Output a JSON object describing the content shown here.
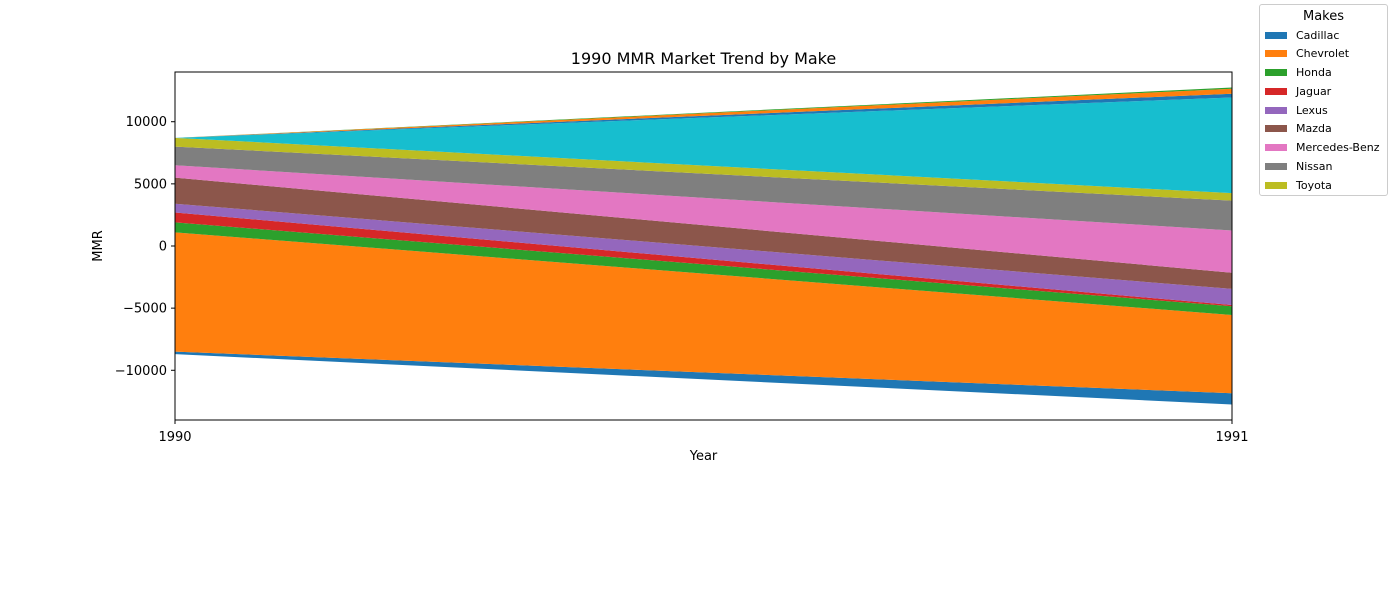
{
  "chart_data": {
    "type": "area",
    "title": "1990 MMR Market Trend by Make",
    "xlabel": "Year",
    "ylabel": "MMR",
    "x": [
      1990,
      1991
    ],
    "x_ticks": [
      "1990",
      "1991"
    ],
    "y_ticks": [
      "−10000",
      "−5000",
      "0",
      "5000",
      "10000"
    ],
    "ylim": [
      -14000,
      14000
    ],
    "grid": false,
    "baseline": "symmetric",
    "legend": {
      "title": "Makes",
      "placement": "outside top-right"
    },
    "series": [
      {
        "name": "Cadillac",
        "color": "#1f77b4",
        "values": [
          200,
          900
        ]
      },
      {
        "name": "Chevrolet",
        "color": "#ff7f0e",
        "values": [
          9600,
          6300
        ]
      },
      {
        "name": "Honda",
        "color": "#2ca02c",
        "values": [
          800,
          700
        ]
      },
      {
        "name": "Jaguar",
        "color": "#d62728",
        "values": [
          800,
          100
        ]
      },
      {
        "name": "Lexus",
        "color": "#9467bd",
        "values": [
          700,
          1300
        ]
      },
      {
        "name": "Mazda",
        "color": "#8c564b",
        "values": [
          2100,
          1300
        ]
      },
      {
        "name": "Mercedes-Benz",
        "color": "#e377c2",
        "values": [
          1000,
          3400
        ]
      },
      {
        "name": "Nissan",
        "color": "#7f7f7f",
        "values": [
          1500,
          2400
        ]
      },
      {
        "name": "Toyota",
        "color": "#bcbd22",
        "values": [
          700,
          600
        ]
      },
      {
        "name": "",
        "color": "#17becf",
        "values": [
          0,
          7700
        ]
      },
      {
        "name": "",
        "color": "#1f77b4",
        "values": [
          0,
          300
        ]
      },
      {
        "name": "",
        "color": "#ff7f0e",
        "values": [
          0,
          400
        ]
      },
      {
        "name": "",
        "color": "#2ca02c",
        "values": [
          0,
          100
        ]
      }
    ]
  }
}
